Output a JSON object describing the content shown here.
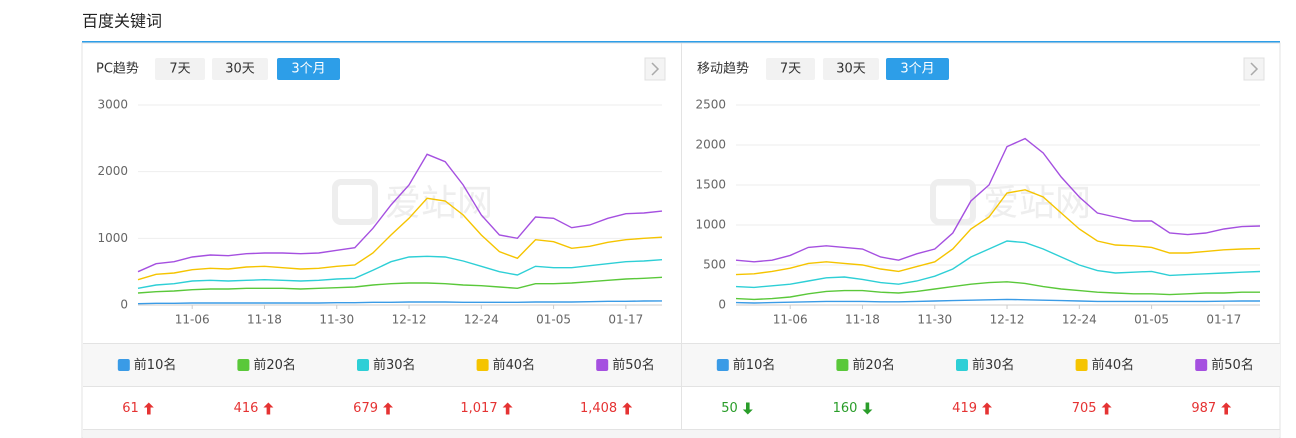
{
  "header": {
    "title": "百度关键词"
  },
  "watermark": "爱站网",
  "chart_data": [
    {
      "type": "line",
      "label": "PC趋势",
      "tabs": [
        "7天",
        "30天",
        "3个月"
      ],
      "active_tab": 2,
      "categories": [
        null,
        null,
        null,
        "11-06",
        null,
        null,
        null,
        "11-18",
        null,
        null,
        null,
        "11-30",
        null,
        null,
        null,
        "12-12",
        null,
        null,
        null,
        "12-24",
        null,
        null,
        null,
        "01-05",
        null,
        null,
        null,
        "01-17",
        null,
        null
      ],
      "ylim": [
        0,
        3000
      ],
      "yticks": [
        0,
        1000,
        2000,
        3000
      ],
      "grid": true,
      "series": [
        {
          "name": "前10名",
          "color": "#3a9be6",
          "values": [
            20,
            25,
            25,
            30,
            30,
            30,
            30,
            30,
            30,
            30,
            30,
            35,
            35,
            40,
            40,
            45,
            45,
            45,
            40,
            40,
            40,
            40,
            45,
            45,
            45,
            50,
            55,
            55,
            60,
            61
          ]
        },
        {
          "name": "前20名",
          "color": "#5ac83a",
          "values": [
            180,
            200,
            210,
            230,
            240,
            240,
            250,
            250,
            250,
            240,
            250,
            260,
            270,
            300,
            320,
            330,
            330,
            320,
            300,
            290,
            270,
            250,
            320,
            320,
            330,
            350,
            370,
            390,
            400,
            416
          ]
        },
        {
          "name": "前30名",
          "color": "#2ecfd6",
          "values": [
            250,
            300,
            320,
            360,
            370,
            360,
            370,
            380,
            370,
            360,
            370,
            390,
            400,
            520,
            650,
            720,
            730,
            720,
            660,
            580,
            500,
            450,
            580,
            560,
            560,
            590,
            620,
            650,
            660,
            679
          ]
        },
        {
          "name": "前40名",
          "color": "#f5c400",
          "values": [
            380,
            460,
            480,
            530,
            550,
            540,
            570,
            580,
            560,
            540,
            550,
            580,
            600,
            780,
            1050,
            1300,
            1600,
            1560,
            1350,
            1050,
            800,
            700,
            980,
            950,
            850,
            880,
            940,
            980,
            1000,
            1017
          ]
        },
        {
          "name": "前50名",
          "color": "#a550e0",
          "values": [
            500,
            620,
            650,
            720,
            750,
            740,
            770,
            780,
            780,
            770,
            780,
            820,
            860,
            1150,
            1500,
            1800,
            2260,
            2150,
            1800,
            1350,
            1050,
            1000,
            1320,
            1300,
            1160,
            1200,
            1300,
            1370,
            1380,
            1408
          ]
        }
      ],
      "latest": {
        "values": [
          61,
          416,
          679,
          1017,
          1408
        ],
        "value_labels": [
          "61",
          "416",
          "679",
          "1,017",
          "1,408"
        ],
        "trend": [
          "up",
          "up",
          "up",
          "up",
          "up"
        ]
      }
    },
    {
      "type": "line",
      "label": "移动趋势",
      "tabs": [
        "7天",
        "30天",
        "3个月"
      ],
      "active_tab": 2,
      "categories": [
        null,
        null,
        null,
        "11-06",
        null,
        null,
        null,
        "11-18",
        null,
        null,
        null,
        "11-30",
        null,
        null,
        null,
        "12-12",
        null,
        null,
        null,
        "12-24",
        null,
        null,
        null,
        "01-05",
        null,
        null,
        null,
        "01-17",
        null,
        null
      ],
      "ylim": [
        0,
        2500
      ],
      "yticks": [
        0,
        500,
        1000,
        1500,
        2000,
        2500
      ],
      "grid": true,
      "series": [
        {
          "name": "前10名",
          "color": "#3a9be6",
          "values": [
            30,
            25,
            30,
            35,
            40,
            45,
            45,
            45,
            40,
            40,
            45,
            50,
            55,
            60,
            65,
            70,
            65,
            60,
            55,
            50,
            45,
            45,
            45,
            45,
            45,
            45,
            45,
            48,
            50,
            50
          ]
        },
        {
          "name": "前20名",
          "color": "#5ac83a",
          "values": [
            80,
            70,
            80,
            100,
            140,
            170,
            180,
            180,
            160,
            150,
            170,
            200,
            230,
            260,
            280,
            290,
            270,
            230,
            200,
            180,
            160,
            150,
            140,
            140,
            130,
            140,
            150,
            150,
            160,
            160
          ]
        },
        {
          "name": "前30名",
          "color": "#2ecfd6",
          "values": [
            230,
            220,
            240,
            260,
            300,
            340,
            350,
            320,
            280,
            260,
            300,
            360,
            450,
            600,
            700,
            800,
            780,
            700,
            600,
            500,
            430,
            400,
            410,
            420,
            370,
            380,
            390,
            400,
            410,
            419
          ]
        },
        {
          "name": "前40名",
          "color": "#f5c400",
          "values": [
            380,
            390,
            420,
            460,
            520,
            540,
            520,
            500,
            450,
            420,
            480,
            540,
            700,
            950,
            1100,
            1400,
            1440,
            1350,
            1150,
            950,
            800,
            750,
            740,
            720,
            650,
            650,
            670,
            690,
            700,
            705
          ]
        },
        {
          "name": "前50名",
          "color": "#a550e0",
          "values": [
            560,
            540,
            560,
            620,
            720,
            740,
            720,
            700,
            600,
            560,
            640,
            700,
            900,
            1300,
            1500,
            1980,
            2080,
            1900,
            1600,
            1350,
            1150,
            1100,
            1050,
            1050,
            900,
            880,
            900,
            950,
            980,
            987
          ]
        }
      ],
      "latest": {
        "values": [
          50,
          160,
          419,
          705,
          987
        ],
        "value_labels": [
          "50",
          "160",
          "419",
          "705",
          "987"
        ],
        "trend": [
          "down",
          "down",
          "up",
          "up",
          "up"
        ]
      }
    }
  ]
}
